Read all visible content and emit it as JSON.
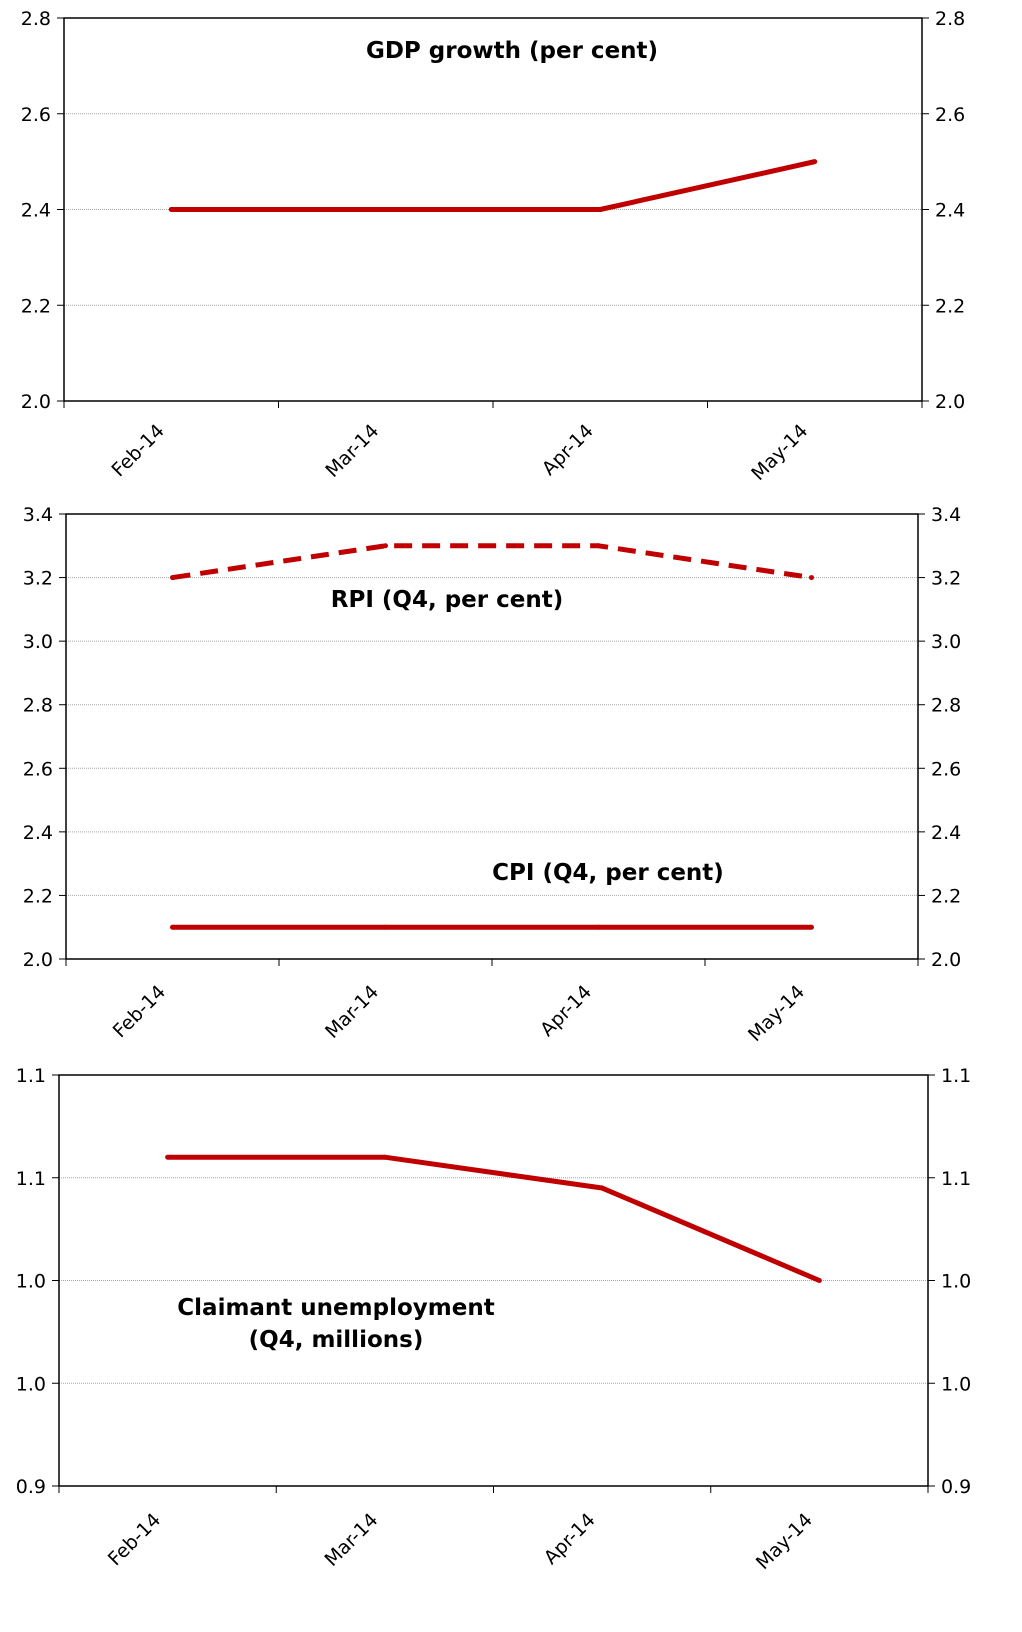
{
  "colors": {
    "series": "#c00000",
    "grid": "#a6a6a6",
    "axis": "#000000"
  },
  "chart_data": [
    {
      "type": "line",
      "categories": [
        "Feb-14",
        "Mar-14",
        "Apr-14",
        "May-14"
      ],
      "y_ticks": [
        "2.0",
        "2.2",
        "2.4",
        "2.6",
        "2.8"
      ],
      "ylim": [
        2.0,
        2.8
      ],
      "grid": true,
      "series": [
        {
          "values": [
            2.4,
            2.4,
            2.4,
            2.5
          ],
          "dashed": false,
          "label": "GDP growth (per cent)"
        }
      ]
    },
    {
      "type": "line",
      "categories": [
        "Feb-14",
        "Mar-14",
        "Apr-14",
        "May-14"
      ],
      "y_ticks": [
        "2.0",
        "2.2",
        "2.4",
        "2.6",
        "2.8",
        "3.0",
        "3.2",
        "3.4"
      ],
      "ylim": [
        2.0,
        3.4
      ],
      "grid": true,
      "series": [
        {
          "values": [
            3.2,
            3.3,
            3.3,
            3.2
          ],
          "dashed": true,
          "label": "RPI (Q4, per cent)"
        },
        {
          "values": [
            2.1,
            2.1,
            2.1,
            2.1
          ],
          "dashed": false,
          "label": "CPI (Q4, per cent)"
        }
      ]
    },
    {
      "type": "line",
      "categories": [
        "Feb-14",
        "Mar-14",
        "Apr-14",
        "May-14"
      ],
      "y_ticks": [
        "0.9",
        "1.0",
        "1.0",
        "1.1",
        "1.1"
      ],
      "ylim": [
        0.9,
        1.1
      ],
      "grid": true,
      "series": [
        {
          "values": [
            1.06,
            1.06,
            1.045,
            1.0
          ],
          "dashed": false,
          "label": "Claimant unemployment (Q4, millions)"
        }
      ]
    }
  ]
}
